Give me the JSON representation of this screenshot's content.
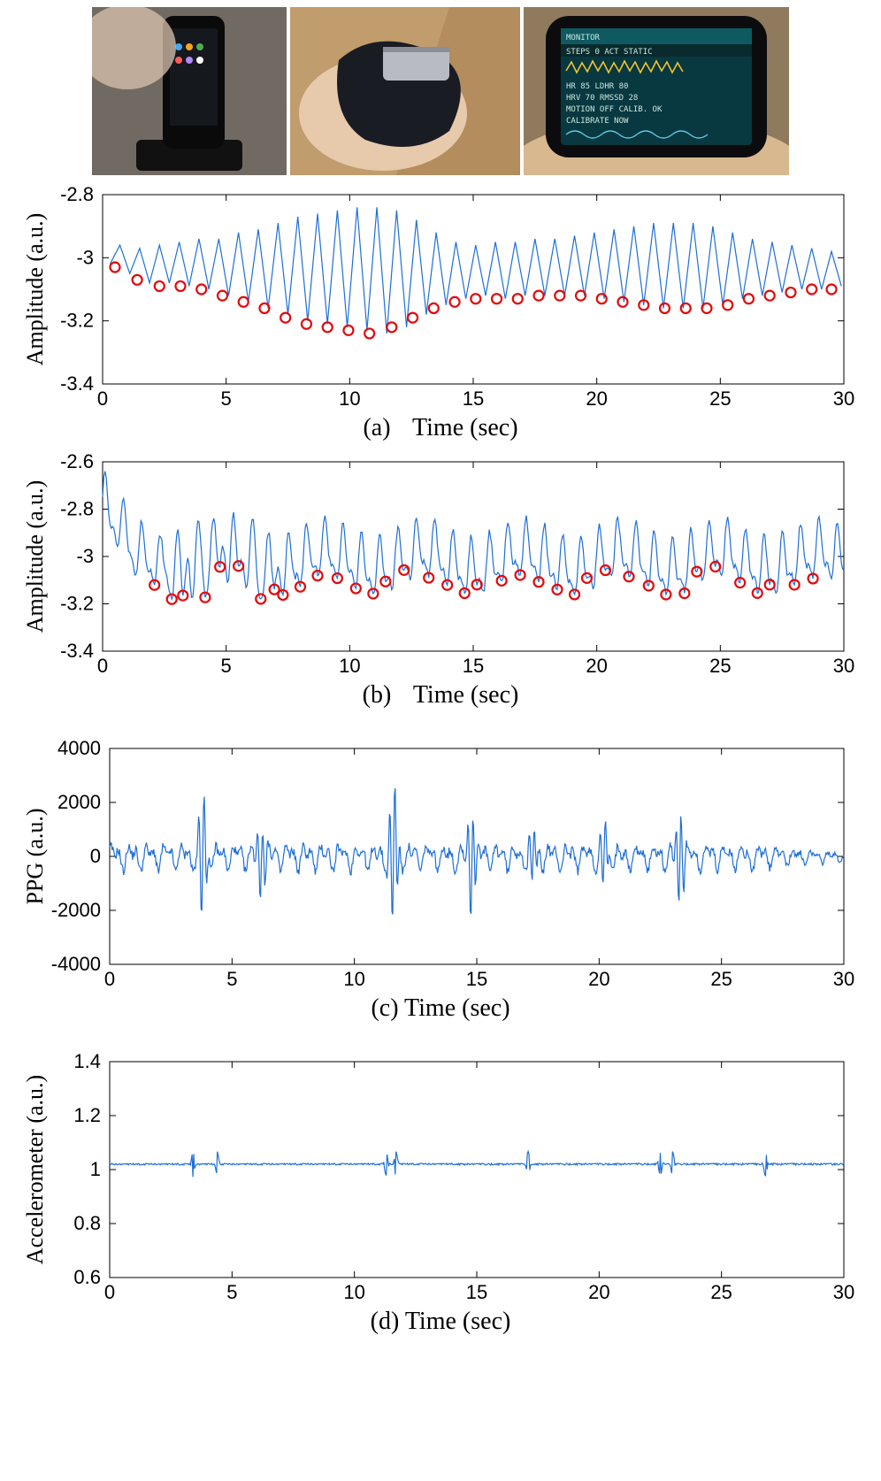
{
  "photos": {
    "photo1_bg": "#3a3530",
    "photo2_bg": "#9a7a55",
    "photo3_bg": "#6a5c48"
  },
  "chart_a": {
    "type": "line",
    "ylabel": "Amplitude (a.u.)",
    "xlabel_combined": "(a)    Time (sec)",
    "letter": "(a)",
    "xlabel": "Time (sec)",
    "xlim": [
      0,
      30
    ],
    "ylim": [
      -3.4,
      -2.8
    ],
    "xticks": [
      0,
      5,
      10,
      15,
      20,
      25,
      30
    ],
    "yticks": [
      -3.4,
      -3.2,
      -3,
      -2.8
    ],
    "line_color": "#1f6fd6",
    "marker_color": "#e3090c",
    "line_width": 1.2,
    "axis_color": "#000000",
    "background_color": "#ffffff",
    "label_fontsize": 26,
    "tick_fontsize": 22,
    "series_x": [
      0.3,
      0.7,
      1.1,
      1.5,
      1.9,
      2.3,
      2.7,
      3.1,
      3.5,
      3.9,
      4.3,
      4.7,
      5.1,
      5.5,
      5.9,
      6.3,
      6.7,
      7.1,
      7.5,
      7.9,
      8.3,
      8.7,
      9.1,
      9.5,
      9.9,
      10.3,
      10.7,
      11.1,
      11.5,
      11.9,
      12.3,
      12.7,
      13.1,
      13.5,
      13.9,
      14.3,
      14.7,
      15.1,
      15.5,
      15.9,
      16.3,
      16.7,
      17.1,
      17.5,
      17.9,
      18.3,
      18.7,
      19.1,
      19.5,
      19.9,
      20.3,
      20.7,
      21.1,
      21.5,
      21.9,
      22.3,
      22.7,
      23.1,
      23.5,
      23.9,
      24.3,
      24.7,
      25.1,
      25.5,
      25.9,
      26.3,
      26.7,
      27.1,
      27.5,
      27.9,
      28.3,
      28.7,
      29.1,
      29.5,
      29.9
    ],
    "series_y": [
      -3.02,
      -2.96,
      -3.05,
      -2.97,
      -3.08,
      -2.96,
      -3.08,
      -2.95,
      -3.09,
      -2.94,
      -3.1,
      -2.94,
      -3.12,
      -2.92,
      -3.14,
      -2.91,
      -3.16,
      -2.89,
      -3.18,
      -2.87,
      -3.2,
      -2.86,
      -3.21,
      -2.85,
      -3.22,
      -2.84,
      -3.23,
      -2.84,
      -3.24,
      -2.85,
      -3.22,
      -2.88,
      -3.18,
      -2.92,
      -3.15,
      -2.95,
      -3.13,
      -2.96,
      -3.12,
      -2.95,
      -3.13,
      -2.95,
      -3.12,
      -2.94,
      -3.12,
      -2.94,
      -3.12,
      -2.93,
      -3.12,
      -2.92,
      -3.13,
      -2.91,
      -3.14,
      -2.9,
      -3.15,
      -2.89,
      -3.16,
      -2.89,
      -3.16,
      -2.89,
      -3.16,
      -2.9,
      -3.15,
      -2.92,
      -3.13,
      -2.94,
      -3.12,
      -2.95,
      -3.11,
      -2.96,
      -3.1,
      -2.97,
      -3.1,
      -2.98,
      -3.09
    ],
    "markers_x": [
      0.5,
      1.4,
      2.3,
      3.15,
      4.0,
      4.85,
      5.7,
      6.55,
      7.4,
      8.25,
      9.1,
      9.95,
      10.8,
      11.7,
      12.55,
      13.4,
      14.25,
      15.1,
      15.95,
      16.8,
      17.65,
      18.5,
      19.35,
      20.2,
      21.05,
      21.9,
      22.75,
      23.6,
      24.45,
      25.3,
      26.15,
      27.0,
      27.85,
      28.7,
      29.5
    ],
    "markers_y": [
      -3.03,
      -3.07,
      -3.09,
      -3.09,
      -3.1,
      -3.12,
      -3.14,
      -3.16,
      -3.19,
      -3.21,
      -3.22,
      -3.23,
      -3.24,
      -3.22,
      -3.19,
      -3.16,
      -3.14,
      -3.13,
      -3.13,
      -3.13,
      -3.12,
      -3.12,
      -3.12,
      -3.13,
      -3.14,
      -3.15,
      -3.16,
      -3.16,
      -3.16,
      -3.15,
      -3.13,
      -3.12,
      -3.11,
      -3.1,
      -3.1
    ]
  },
  "chart_b": {
    "type": "line",
    "ylabel": "Amplitude (a.u.)",
    "xlabel_combined": "(b)    Time (sec)",
    "letter": "(b)",
    "xlabel": "Time (sec)",
    "xlim": [
      0,
      30
    ],
    "ylim": [
      -3.4,
      -2.6
    ],
    "xticks": [
      0,
      5,
      10,
      15,
      20,
      25,
      30
    ],
    "yticks": [
      -3.4,
      -3.2,
      -3,
      -2.8,
      -2.6
    ],
    "line_color": "#1f6fd6",
    "marker_color": "#e3090c",
    "line_width": 1.2,
    "axis_color": "#000000",
    "background_color": "#ffffff",
    "label_fontsize": 26,
    "tick_fontsize": 22
  },
  "chart_c": {
    "type": "line",
    "ylabel": "PPG (a.u.)",
    "xlabel_combined": "(c) Time (sec)",
    "letter": "(c)",
    "xlabel": "Time (sec)",
    "xlim": [
      0,
      30
    ],
    "ylim": [
      -4000,
      4000
    ],
    "xticks": [
      0,
      5,
      10,
      15,
      20,
      25,
      30
    ],
    "yticks": [
      -4000,
      -2000,
      0,
      2000,
      4000
    ],
    "line_color": "#1f6fd6",
    "line_width": 1.2,
    "axis_color": "#000000",
    "background_color": "#ffffff",
    "label_fontsize": 26,
    "tick_fontsize": 22
  },
  "chart_d": {
    "type": "line",
    "ylabel": "Accelerometer (a.u.)",
    "xlabel_combined": "(d) Time (sec)",
    "letter": "(d)",
    "xlabel": "Time (sec)",
    "xlim": [
      0,
      30
    ],
    "ylim": [
      0.6,
      1.4
    ],
    "xticks": [
      0,
      5,
      10,
      15,
      20,
      25,
      30
    ],
    "yticks": [
      0.6,
      0.8,
      1,
      1.2,
      1.4
    ],
    "line_color": "#1f6fd6",
    "line_width": 1.2,
    "axis_color": "#000000",
    "background_color": "#ffffff",
    "label_fontsize": 26,
    "tick_fontsize": 22,
    "baseline_y": 1.02
  }
}
